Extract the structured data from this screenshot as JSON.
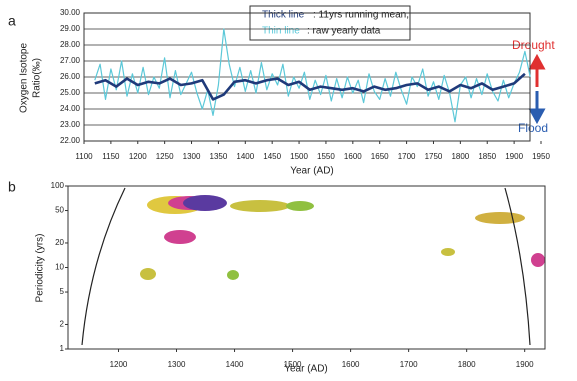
{
  "chart_data": [
    {
      "type": "line",
      "panel": "a",
      "ylabel": [
        "Oxygen Isotope",
        "Ratio(‰)"
      ],
      "xlabel": "Year (AD)",
      "legend_text": [
        ": 11yrs running mean,",
        ": raw yearly data"
      ],
      "annotations": [
        "Drought",
        "Flood"
      ],
      "xlim": [
        1100,
        1950
      ],
      "xticks": [
        1100,
        1150,
        1200,
        1250,
        1300,
        1350,
        1400,
        1450,
        1500,
        1550,
        1600,
        1650,
        1700,
        1750,
        1800,
        1850,
        1900,
        1950
      ],
      "ylim": [
        22,
        30
      ],
      "yticks": [
        {
          "value": 22,
          "label": "22.00"
        },
        {
          "value": 23,
          "label": "23.00"
        },
        {
          "value": 24,
          "label": "24.00"
        },
        {
          "value": 25,
          "label": "25.00"
        },
        {
          "value": 26,
          "label": "26.00"
        },
        {
          "value": 27,
          "label": "27.00"
        },
        {
          "value": 28,
          "label": "28.00"
        },
        {
          "value": 29,
          "label": "29.00"
        },
        {
          "value": 30,
          "label": "30.00"
        }
      ],
      "grid": true,
      "series": [
        {
          "name": "Thin line",
          "color": "#5bc8d8",
          "width": 1.2,
          "x": [
            1120,
            1130,
            1140,
            1150,
            1160,
            1170,
            1180,
            1190,
            1200,
            1210,
            1220,
            1230,
            1240,
            1250,
            1260,
            1270,
            1280,
            1290,
            1300,
            1310,
            1320,
            1330,
            1340,
            1350,
            1360,
            1370,
            1380,
            1390,
            1400,
            1410,
            1420,
            1430,
            1440,
            1450,
            1460,
            1470,
            1480,
            1490,
            1500,
            1510,
            1520,
            1530,
            1540,
            1550,
            1560,
            1570,
            1580,
            1590,
            1600,
            1610,
            1620,
            1630,
            1640,
            1650,
            1660,
            1670,
            1680,
            1690,
            1700,
            1710,
            1720,
            1730,
            1740,
            1750,
            1760,
            1770,
            1780,
            1790,
            1800,
            1810,
            1820,
            1830,
            1840,
            1850,
            1860,
            1870,
            1880,
            1890,
            1900,
            1910,
            1920,
            1930
          ],
          "values": [
            25.8,
            26.8,
            24.6,
            26.5,
            25.2,
            27.0,
            24.8,
            26.2,
            25.0,
            26.6,
            24.9,
            26.0,
            25.3,
            27.2,
            24.7,
            26.4,
            24.9,
            25.6,
            26.3,
            25.0,
            24.0,
            25.2,
            23.6,
            25.5,
            29.0,
            26.8,
            25.4,
            26.6,
            25.1,
            26.4,
            25.0,
            26.9,
            25.2,
            26.2,
            25.5,
            26.8,
            24.8,
            26.0,
            25.3,
            26.3,
            24.6,
            25.8,
            24.9,
            26.1,
            24.5,
            25.9,
            24.7,
            26.0,
            25.0,
            25.8,
            24.4,
            26.2,
            25.1,
            24.6,
            25.9,
            24.8,
            26.3,
            25.2,
            24.3,
            26.0,
            25.4,
            26.5,
            24.8,
            25.7,
            24.6,
            26.1,
            25.0,
            23.2,
            25.5,
            26.0,
            24.7,
            25.9,
            24.9,
            26.2,
            25.1,
            24.5,
            25.8,
            24.7,
            25.6,
            26.3,
            27.6,
            26.0
          ]
        },
        {
          "name": "Thick line",
          "color": "#1f3a7a",
          "width": 2.6,
          "x": [
            1120,
            1140,
            1160,
            1180,
            1200,
            1220,
            1240,
            1260,
            1280,
            1300,
            1320,
            1340,
            1360,
            1380,
            1400,
            1420,
            1440,
            1460,
            1480,
            1500,
            1520,
            1540,
            1560,
            1580,
            1600,
            1620,
            1640,
            1660,
            1680,
            1700,
            1720,
            1740,
            1760,
            1780,
            1800,
            1820,
            1840,
            1860,
            1880,
            1900,
            1920
          ],
          "values": [
            25.6,
            25.8,
            25.4,
            25.9,
            25.5,
            25.7,
            25.6,
            25.9,
            25.5,
            25.6,
            25.8,
            24.6,
            24.9,
            25.7,
            25.8,
            25.6,
            25.8,
            25.9,
            25.5,
            25.7,
            25.2,
            25.4,
            25.3,
            25.2,
            25.3,
            25.1,
            25.4,
            25.2,
            25.3,
            25.5,
            25.6,
            25.2,
            25.4,
            25.1,
            25.5,
            25.3,
            25.6,
            25.2,
            25.4,
            25.6,
            26.2
          ]
        }
      ]
    },
    {
      "type": "wavelet",
      "panel": "b",
      "ylabel": "Periodicity (yrs)",
      "xlabel": "Year (AD)",
      "xlim": [
        1113,
        1935
      ],
      "xticks": [
        1200,
        1300,
        1400,
        1500,
        1600,
        1700,
        1800,
        1900
      ],
      "ylim": [
        1,
        100
      ],
      "yticks": [
        1,
        2,
        5,
        10,
        20,
        50,
        100
      ],
      "log_y": true
    }
  ]
}
